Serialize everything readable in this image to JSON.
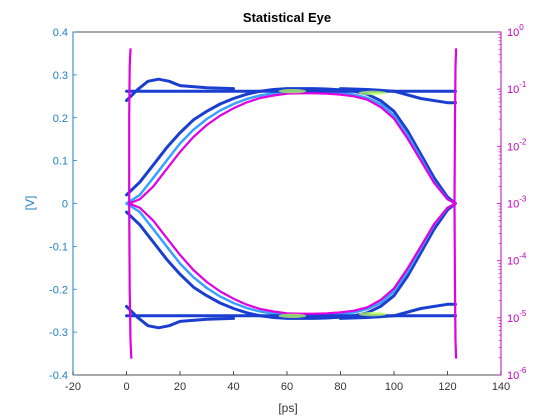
{
  "chart_data": {
    "type": "line",
    "title": "Statistical Eye",
    "xlabel": "[ps]",
    "ylabel_left": "[V]",
    "ylabel_right": "",
    "xlim": [
      -20,
      140
    ],
    "ylim_left": [
      -0.4,
      0.4
    ],
    "ylim_right": [
      1e-06,
      1
    ],
    "right_axis_scale": "log",
    "grid": false,
    "xticks": [
      "-20",
      "0",
      "20",
      "40",
      "60",
      "80",
      "100",
      "120",
      "140"
    ],
    "yticks_left": [
      "-0.4",
      "-0.3",
      "-0.2",
      "-0.1",
      "0",
      "0.1",
      "0.2",
      "0.3",
      "0.4"
    ],
    "yticks_right": [
      {
        "base": "10",
        "exp": "0"
      },
      {
        "base": "10",
        "exp": "-1"
      },
      {
        "base": "10",
        "exp": "-2"
      },
      {
        "base": "10",
        "exp": "-3"
      },
      {
        "base": "10",
        "exp": "-4"
      },
      {
        "base": "10",
        "exp": "-5"
      },
      {
        "base": "10",
        "exp": "-6"
      }
    ],
    "colors": {
      "left_axis": "#1f7fbf",
      "right_axis": "#c000c0",
      "eye_outer": "#1a3fd0",
      "eye_inner": "#3aa0ff",
      "eye_hot": "#b8ff60",
      "contour": "#e000e0"
    },
    "series": [
      {
        "role": "eye-upper-outer",
        "x": [
          0,
          5,
          10,
          15,
          20,
          25,
          30,
          35,
          40,
          45,
          50,
          55,
          60,
          65,
          70,
          75,
          80,
          85,
          90,
          95,
          100,
          105,
          110,
          115,
          120,
          123
        ],
        "y": [
          0.02,
          0.05,
          0.09,
          0.13,
          0.165,
          0.195,
          0.215,
          0.232,
          0.245,
          0.255,
          0.262,
          0.266,
          0.268,
          0.268,
          0.268,
          0.267,
          0.265,
          0.262,
          0.255,
          0.24,
          0.215,
          0.17,
          0.115,
          0.06,
          0.015,
          0.0
        ]
      },
      {
        "role": "eye-upper-inner",
        "x": [
          0,
          5,
          10,
          15,
          20,
          25,
          30,
          35,
          40,
          45,
          50,
          55,
          60,
          65,
          70,
          75,
          80,
          85,
          90,
          95,
          100,
          105,
          110,
          115,
          120,
          123
        ],
        "y": [
          0.0,
          0.02,
          0.06,
          0.1,
          0.14,
          0.172,
          0.197,
          0.217,
          0.232,
          0.244,
          0.252,
          0.257,
          0.26,
          0.261,
          0.261,
          0.26,
          0.258,
          0.254,
          0.246,
          0.232,
          0.205,
          0.16,
          0.105,
          0.05,
          0.01,
          0.0
        ]
      },
      {
        "role": "upper-rail-1",
        "x": [
          0,
          10,
          20,
          40,
          60,
          80,
          100,
          110,
          123
        ],
        "y": [
          0.262,
          0.262,
          0.262,
          0.262,
          0.262,
          0.262,
          0.262,
          0.262,
          0.262
        ]
      },
      {
        "role": "upper-rail-2",
        "x": [
          0,
          4,
          8,
          12,
          16,
          20,
          30,
          40
        ],
        "y": [
          0.24,
          0.265,
          0.285,
          0.29,
          0.285,
          0.275,
          0.27,
          0.268
        ]
      },
      {
        "role": "upper-rail-3",
        "x": [
          80,
          90,
          100,
          110,
          120,
          123
        ],
        "y": [
          0.268,
          0.266,
          0.262,
          0.245,
          0.235,
          0.235
        ]
      },
      {
        "role": "contour-upper",
        "x": [
          1,
          5,
          10,
          15,
          20,
          25,
          30,
          35,
          40,
          45,
          50,
          55,
          60,
          65,
          70,
          75,
          80,
          85,
          90,
          95,
          100,
          105,
          110,
          115,
          120,
          123
        ],
        "y": [
          0.0,
          0.01,
          0.04,
          0.08,
          0.12,
          0.155,
          0.183,
          0.205,
          0.222,
          0.236,
          0.246,
          0.252,
          0.256,
          0.257,
          0.257,
          0.256,
          0.254,
          0.25,
          0.242,
          0.225,
          0.198,
          0.152,
          0.1,
          0.048,
          0.01,
          0.0
        ]
      },
      {
        "role": "contour-lower",
        "x": [
          1,
          5,
          10,
          15,
          20,
          25,
          30,
          35,
          40,
          45,
          50,
          55,
          60,
          65,
          70,
          75,
          80,
          85,
          90,
          95,
          100,
          105,
          110,
          115,
          120,
          123
        ],
        "y": [
          0.0,
          -0.01,
          -0.04,
          -0.08,
          -0.12,
          -0.155,
          -0.183,
          -0.205,
          -0.222,
          -0.236,
          -0.246,
          -0.252,
          -0.256,
          -0.257,
          -0.257,
          -0.256,
          -0.254,
          -0.25,
          -0.242,
          -0.225,
          -0.198,
          -0.152,
          -0.1,
          -0.048,
          -0.01,
          0.0
        ]
      },
      {
        "role": "bathtub-left",
        "x": [
          1.5,
          1.2,
          1.0,
          1.0,
          1.2,
          1.5,
          1.8
        ],
        "y": [
          0.36,
          0.32,
          0.2,
          0.0,
          -0.2,
          -0.32,
          -0.36
        ]
      },
      {
        "role": "bathtub-right",
        "x": [
          123.2,
          123.0,
          122.8,
          122.6,
          122.8,
          123.0,
          123.2
        ],
        "y": [
          0.36,
          0.32,
          0.2,
          0.0,
          -0.2,
          -0.32,
          -0.36
        ]
      }
    ]
  }
}
